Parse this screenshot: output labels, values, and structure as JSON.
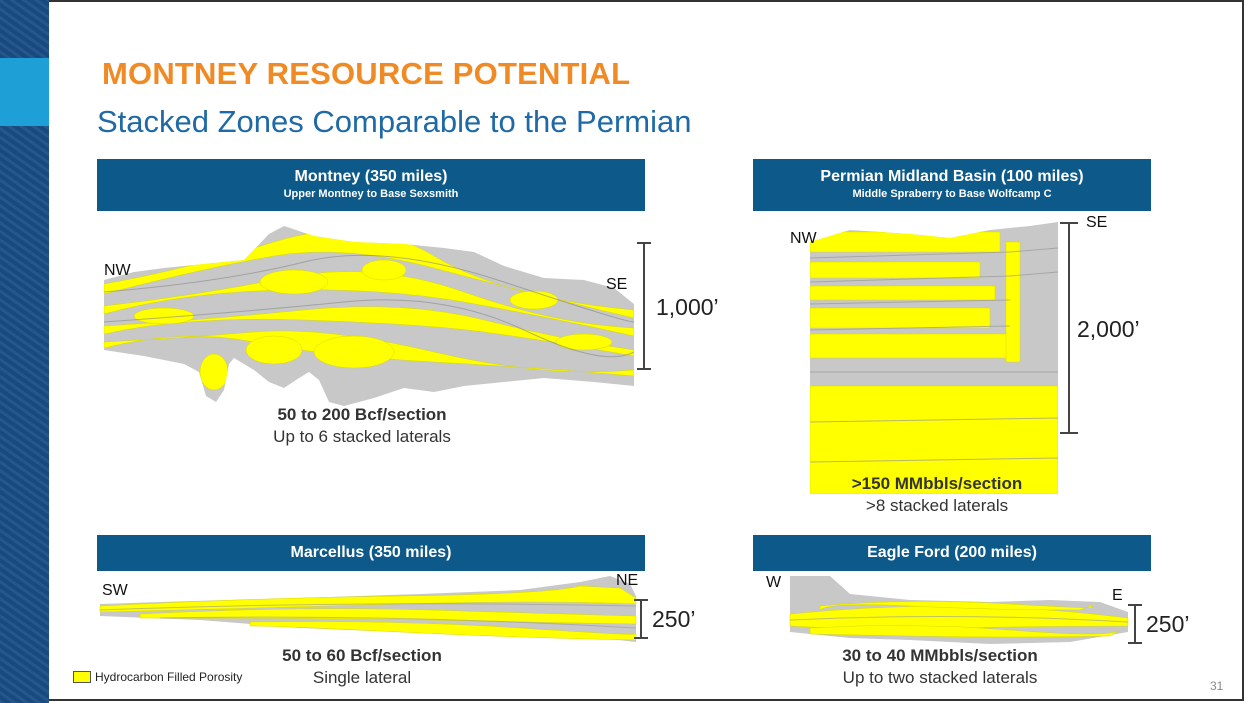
{
  "slide": {
    "title": "MONTNEY RESOURCE POTENTIAL",
    "subtitle": "Stacked Zones Comparable to the Permian",
    "page_number": "31",
    "legend_label": "Hydrocarbon Filled Porosity",
    "colors": {
      "title": "#f08a24",
      "subtitle": "#1f6aa6",
      "header": "#0d5a8a",
      "hydrocarbon": "#ffff00",
      "rock": "#c8c8c8"
    }
  },
  "panels": {
    "montney": {
      "title": "Montney (350 miles)",
      "subtitle": "Upper Montney to Base Sexsmith",
      "left_dir": "NW",
      "right_dir": "SE",
      "scale": "1,000’",
      "stat_bold": "50 to 200 Bcf/section",
      "stat_text": "Up to 6 stacked laterals"
    },
    "permian": {
      "title": "Permian Midland Basin (100 miles)",
      "subtitle": "Middle Spraberry to Base Wolfcamp C",
      "left_dir": "NW",
      "right_dir": "SE",
      "scale": "2,000’",
      "stat_bold": ">150 MMbbls/section",
      "stat_text": ">8 stacked laterals"
    },
    "marcellus": {
      "title": "Marcellus (350 miles)",
      "left_dir": "SW",
      "right_dir": "NE",
      "scale": "250’",
      "stat_bold": "50 to 60 Bcf/section",
      "stat_text": "Single lateral"
    },
    "eagle_ford": {
      "title": "Eagle Ford (200 miles)",
      "left_dir": "W",
      "right_dir": "E",
      "scale": "250’",
      "stat_bold": "30 to 40 MMbbls/section",
      "stat_text": "Up to two stacked laterals"
    }
  }
}
